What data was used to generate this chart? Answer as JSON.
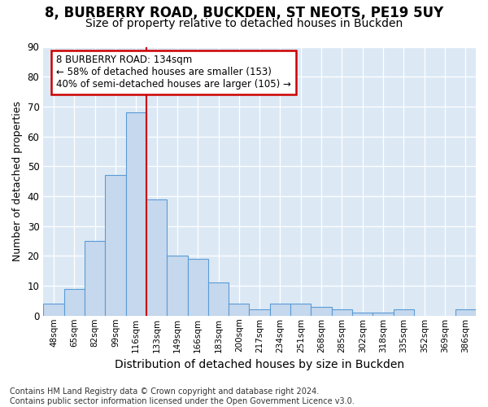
{
  "title1": "8, BURBERRY ROAD, BUCKDEN, ST NEOTS, PE19 5UY",
  "title2": "Size of property relative to detached houses in Buckden",
  "xlabel": "Distribution of detached houses by size in Buckden",
  "ylabel": "Number of detached properties",
  "footnote": "Contains HM Land Registry data © Crown copyright and database right 2024.\nContains public sector information licensed under the Open Government Licence v3.0.",
  "bar_labels": [
    "48sqm",
    "65sqm",
    "82sqm",
    "99sqm",
    "116sqm",
    "133sqm",
    "149sqm",
    "166sqm",
    "183sqm",
    "200sqm",
    "217sqm",
    "234sqm",
    "251sqm",
    "268sqm",
    "285sqm",
    "302sqm",
    "318sqm",
    "335sqm",
    "352sqm",
    "369sqm",
    "386sqm"
  ],
  "bar_values": [
    4,
    9,
    25,
    47,
    68,
    39,
    20,
    19,
    11,
    4,
    2,
    4,
    4,
    3,
    2,
    1,
    1,
    2,
    0,
    0,
    2
  ],
  "bar_color": "#c5d8ed",
  "bar_edge_color": "#5b9bd5",
  "property_line_index": 5,
  "annotation_text": "8 BURBERRY ROAD: 134sqm\n← 58% of detached houses are smaller (153)\n40% of semi-detached houses are larger (105) →",
  "annotation_box_color": "#ffffff",
  "annotation_box_edge": "#cc0000",
  "line_color": "#cc0000",
  "fig_bg_color": "#ffffff",
  "plot_bg_color": "#dce9f5",
  "ylim": [
    0,
    90
  ],
  "yticks": [
    0,
    10,
    20,
    30,
    40,
    50,
    60,
    70,
    80,
    90
  ],
  "title1_fontsize": 12,
  "title2_fontsize": 10,
  "xlabel_fontsize": 10,
  "ylabel_fontsize": 9,
  "footnote_fontsize": 7
}
